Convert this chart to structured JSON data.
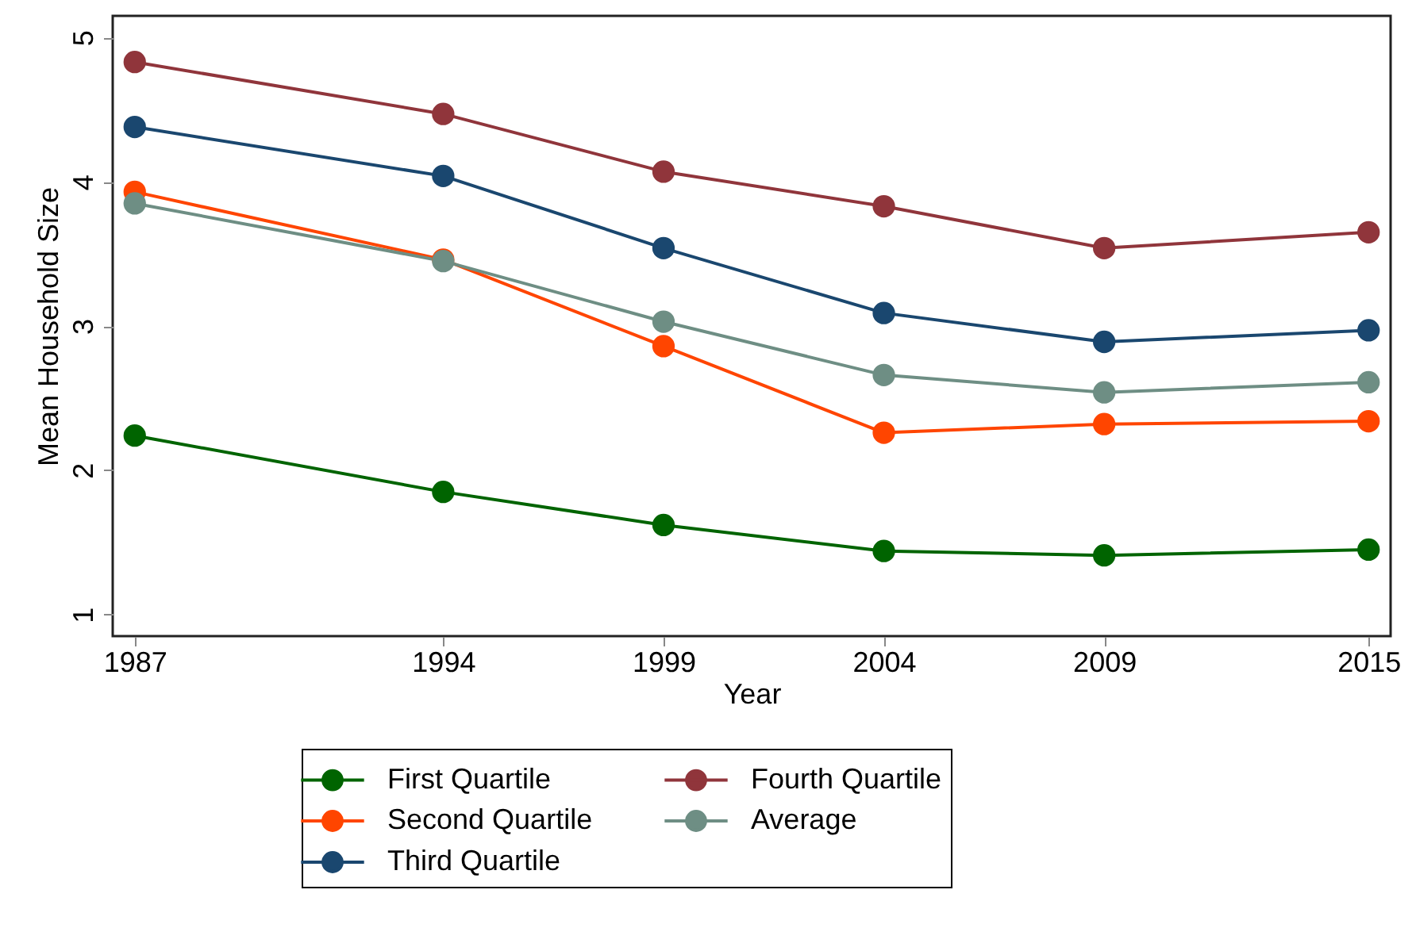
{
  "chart_data": {
    "type": "line",
    "xlabel": "Year",
    "ylabel": "Mean Household Size",
    "x": [
      1987,
      1994,
      1999,
      2004,
      2009,
      2015
    ],
    "xlim": [
      1986.5,
      2015.5
    ],
    "xticks": [
      1987,
      1994,
      1999,
      2004,
      2009,
      2015
    ],
    "ylim": [
      0.85,
      5.15
    ],
    "yticks": [
      1,
      2,
      3,
      4,
      5
    ],
    "grid": false,
    "legend": "bottom",
    "marker": "circle",
    "line_style": "solid",
    "series": [
      {
        "name": "First Quartile",
        "color": "#006400",
        "values": [
          2.24,
          1.85,
          1.62,
          1.44,
          1.41,
          1.45
        ]
      },
      {
        "name": "Second Quartile",
        "color": "#ff4500",
        "values": [
          3.93,
          3.46,
          2.86,
          2.26,
          2.32,
          2.34
        ]
      },
      {
        "name": "Third Quartile",
        "color": "#1a476f",
        "values": [
          4.38,
          4.04,
          3.54,
          3.09,
          2.89,
          2.97
        ]
      },
      {
        "name": "Fourth Quartile",
        "color": "#90353b",
        "values": [
          4.83,
          4.47,
          4.07,
          3.83,
          3.54,
          3.65
        ]
      },
      {
        "name": "Average",
        "color": "#6e8e84",
        "values": [
          3.85,
          3.45,
          3.03,
          2.66,
          2.54,
          2.61
        ]
      }
    ]
  }
}
